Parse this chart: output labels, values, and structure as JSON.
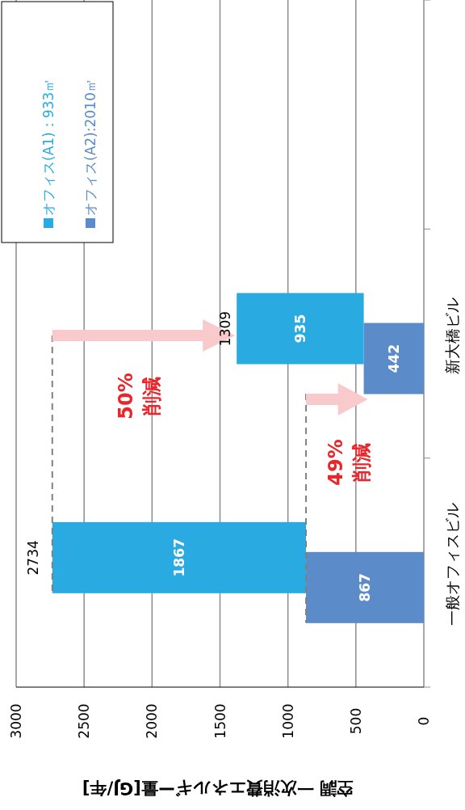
{
  "chart_data": {
    "type": "bar",
    "orientation": "horizontal",
    "stacked": true,
    "categories": [
      null,
      "新大橋ビル",
      "一般オフィスビル"
    ],
    "series": [
      {
        "name": "オフィス(A2):2010㎡",
        "color": "#5b8bc8",
        "values": [
          null,
          442,
          867
        ]
      },
      {
        "name": "オフィス(A1)：933㎡",
        "color": "#29abe2",
        "values": [
          null,
          935,
          1867
        ]
      }
    ],
    "xlim": [
      3000,
      0
    ],
    "xticks": [
      0,
      500,
      1000,
      1500,
      2000,
      2500,
      3000
    ],
    "xlabel": "空調 一次消費エネルギー量[GJ/年]",
    "grid": "x",
    "legend": "top left",
    "data_labels": true,
    "totals": [
      null,
      null,
      "2734"
    ],
    "annotations": [
      "50%\n削減",
      "49%\n削減",
      "1309"
    ]
  }
}
